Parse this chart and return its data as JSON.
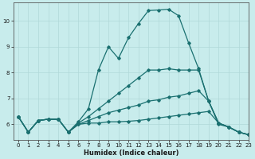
{
  "xlabel": "Humidex (Indice chaleur)",
  "ylabel": "",
  "background_color": "#c8ecec",
  "grid_color": "#b0d8d8",
  "line_color": "#1a7070",
  "xlim": [
    -0.5,
    23
  ],
  "ylim": [
    5.4,
    10.7
  ],
  "xticks": [
    0,
    1,
    2,
    3,
    4,
    5,
    6,
    7,
    8,
    9,
    10,
    11,
    12,
    13,
    14,
    15,
    16,
    17,
    18,
    19,
    20,
    21,
    22,
    23
  ],
  "yticks": [
    6,
    7,
    8,
    9,
    10
  ],
  "series": [
    [
      6.3,
      5.7,
      6.15,
      6.2,
      6.2,
      5.7,
      6.1,
      6.6,
      8.1,
      9.0,
      8.55,
      9.35,
      9.9,
      10.4,
      10.42,
      10.45,
      10.2,
      9.15,
      8.15,
      6.9,
      6.0,
      5.9,
      5.7,
      5.6
    ],
    [
      6.3,
      5.7,
      6.15,
      6.2,
      6.2,
      5.7,
      6.05,
      6.3,
      6.6,
      6.9,
      7.2,
      7.5,
      7.8,
      8.1,
      8.1,
      8.15,
      8.1,
      8.1,
      8.1,
      6.9,
      6.05,
      5.9,
      5.7,
      5.6
    ],
    [
      6.3,
      5.7,
      6.15,
      6.2,
      6.2,
      5.7,
      6.0,
      6.15,
      6.3,
      6.45,
      6.55,
      6.65,
      6.75,
      6.9,
      6.95,
      7.05,
      7.1,
      7.2,
      7.3,
      6.9,
      6.05,
      5.9,
      5.7,
      5.6
    ],
    [
      6.3,
      5.7,
      6.15,
      6.2,
      6.2,
      5.7,
      6.0,
      6.05,
      6.05,
      6.1,
      6.1,
      6.12,
      6.15,
      6.2,
      6.25,
      6.3,
      6.35,
      6.4,
      6.45,
      6.5,
      6.05,
      5.9,
      5.7,
      5.6
    ]
  ],
  "marker": "D",
  "markersize": 1.8,
  "linewidth": 0.9,
  "title_fontsize": 7,
  "xlabel_fontsize": 6,
  "tick_labelsize": 5
}
